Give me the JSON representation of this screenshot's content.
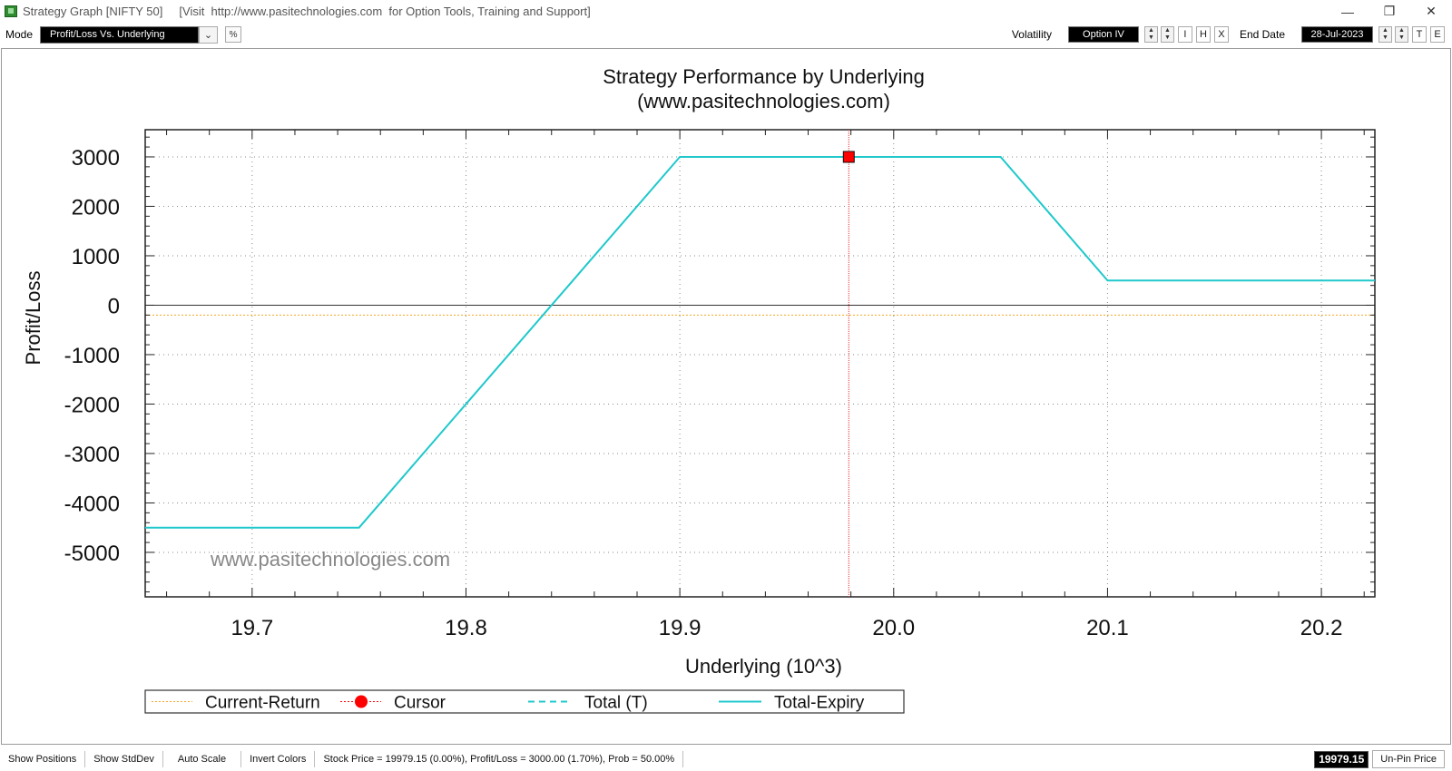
{
  "window": {
    "title": "Strategy Graph [NIFTY 50]",
    "visit_text": "[Visit  http://www.pasitechnologies.com  for Option Tools, Training and Support]",
    "controls": [
      "—",
      "❐",
      "✕"
    ]
  },
  "toolbar": {
    "mode_label": "Mode",
    "mode_value": "Profit/Loss Vs. Underlying",
    "dropdown_glyph": "⌄",
    "percent_label": "%",
    "volatility_label": "Volatility",
    "volatility_value": "Option IV",
    "vol_buttons": [
      "I",
      "H",
      "X"
    ],
    "end_date_label": "End Date",
    "end_date_value": "28-Jul-2023",
    "date_buttons": [
      "T",
      "E"
    ]
  },
  "chart_data": {
    "type": "line",
    "title": "Strategy Performance by Underlying",
    "subtitle": "(www.pasitechnologies.com)",
    "xlabel": "Underlying (10^3)",
    "ylabel": "Profit/Loss",
    "watermark": "www.pasitechnologies.com",
    "xlim": [
      19.65,
      20.225
    ],
    "ylim": [
      -5900,
      3550
    ],
    "x_ticks": [
      "19.7",
      "19.8",
      "19.9",
      "20.0",
      "20.1",
      "20.2"
    ],
    "x_tick_values": [
      19.7,
      19.8,
      19.9,
      20.0,
      20.1,
      20.2
    ],
    "y_ticks": [
      "3000",
      "2000",
      "1000",
      "0",
      "-1000",
      "-2000",
      "-3000",
      "-4000",
      "-5000"
    ],
    "y_tick_values": [
      3000,
      2000,
      1000,
      0,
      -1000,
      -2000,
      -3000,
      -4000,
      -5000
    ],
    "grid": true,
    "series": [
      {
        "name": "Total-Expiry",
        "color": "#20c8cc",
        "x": [
          19.65,
          19.75,
          19.9,
          20.05,
          20.1,
          20.225
        ],
        "y": [
          -4500,
          -4500,
          3000,
          3000,
          500,
          500
        ]
      },
      {
        "name": "Total (T)",
        "color": "#20c8cc",
        "x": [
          19.65,
          19.75,
          19.9,
          20.05,
          20.1,
          20.225
        ],
        "y": [
          -4500,
          -4500,
          3000,
          3000,
          500,
          500
        ]
      }
    ],
    "current_return": -200,
    "cursor": {
      "x": 19.979,
      "y": 3000
    },
    "legend": [
      "Current-Return",
      "Cursor",
      "Total (T)",
      "Total-Expiry"
    ],
    "legend_placement": "bottom"
  },
  "colors": {
    "current_return": "#f5a623",
    "cursor": "#ff0000",
    "cursor_line": "#e03030",
    "series": "#20c8cc",
    "axis": "#000000",
    "grid": "#8a8a8a"
  },
  "statusbar": {
    "buttons": [
      "Show Positions",
      "Show StdDev",
      "Auto Scale",
      "Invert Colors"
    ],
    "info": "Stock Price = 19979.15 (0.00%), Profit/Loss = 3000.00 (1.70%), Prob = 50.00%",
    "price": "19979.15",
    "unpin_label": "Un-Pin Price"
  }
}
